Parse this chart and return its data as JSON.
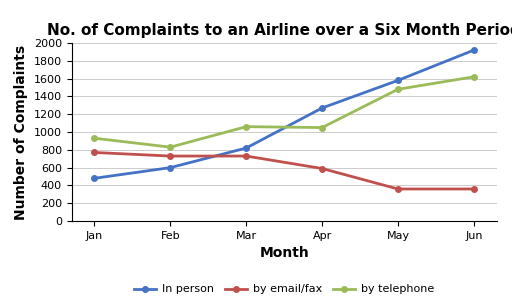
{
  "title": "No. of Complaints to an Airline over a Six Month Period",
  "xlabel": "Month",
  "ylabel": "Number of Complaints",
  "months": [
    "Jan",
    "Feb",
    "Mar",
    "Apr",
    "May",
    "Jun"
  ],
  "in_person": [
    480,
    600,
    820,
    1270,
    1580,
    1920
  ],
  "by_email_fax": [
    770,
    730,
    730,
    590,
    360,
    360
  ],
  "by_telephone": [
    930,
    830,
    1060,
    1050,
    1480,
    1620
  ],
  "color_in_person": "#4472C4",
  "color_email_fax": "#C0504D",
  "color_telephone": "#9BBB59",
  "ylim": [
    0,
    2000
  ],
  "yticks": [
    0,
    200,
    400,
    600,
    800,
    1000,
    1200,
    1400,
    1600,
    1800,
    2000
  ],
  "legend_labels": [
    "In person",
    "by email/fax",
    "by telephone"
  ],
  "background_color": "#FFFFFF",
  "title_fontsize": 11,
  "axis_label_fontsize": 10,
  "tick_fontsize": 8,
  "legend_fontsize": 8,
  "line_width": 2.0,
  "marker": "o",
  "marker_size": 4
}
